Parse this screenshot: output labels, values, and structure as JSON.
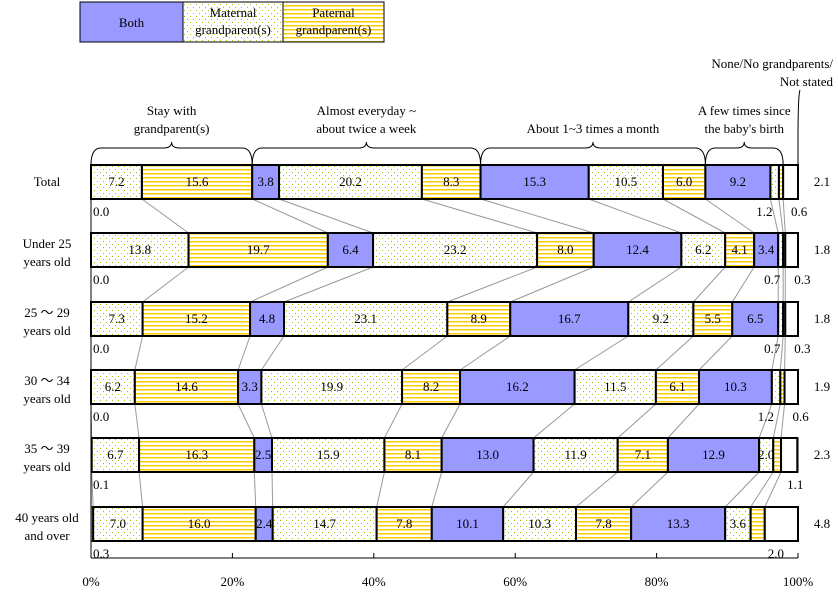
{
  "chart_data": {
    "type": "bar",
    "stacked": true,
    "orientation": "horizontal",
    "legend": [
      {
        "name": "Both",
        "color": "#9999ff",
        "pattern": "solid"
      },
      {
        "name": "Maternal grandparent(s)",
        "color": "#99cc00",
        "pattern": "dots"
      },
      {
        "name": "Paternal grandparent(s)",
        "color": "#ffcc00",
        "pattern": "stripes"
      }
    ],
    "legend_lines": [
      [
        "Both"
      ],
      [
        "Maternal",
        "grandparent(s)"
      ],
      [
        "Paternal",
        "grandparent(s)"
      ]
    ],
    "groups": [
      {
        "label": [
          "Stay with",
          "grandparent(s)"
        ]
      },
      {
        "label": [
          "Almost everyday ~",
          "about twice a week"
        ]
      },
      {
        "label": [
          "About 1~3 times a month"
        ]
      },
      {
        "label": [
          "A few times since",
          "the baby's birth"
        ]
      },
      {
        "label": [
          "None/No grandparents/",
          "Not stated"
        ]
      }
    ],
    "segment_types": [
      "both",
      "maternal",
      "paternal",
      "both",
      "maternal",
      "paternal",
      "both",
      "maternal",
      "paternal",
      "both",
      "maternal",
      "paternal",
      "none"
    ],
    "categories": [
      [
        "Total"
      ],
      [
        "Under 25",
        "years old"
      ],
      [
        "25 ～ 29",
        "years old"
      ],
      [
        "30 ～ 34",
        "years old"
      ],
      [
        "35 ～ 39",
        "years old"
      ],
      [
        "40 years old",
        "and over"
      ]
    ],
    "values": [
      [
        0.0,
        7.2,
        15.6,
        3.8,
        20.2,
        8.3,
        15.3,
        10.5,
        6.0,
        9.2,
        1.2,
        0.6,
        2.1
      ],
      [
        0.0,
        13.8,
        19.7,
        6.4,
        23.2,
        8.0,
        12.4,
        6.2,
        4.1,
        3.4,
        0.7,
        0.3,
        1.8
      ],
      [
        0.0,
        7.3,
        15.2,
        4.8,
        23.1,
        8.9,
        16.7,
        9.2,
        5.5,
        6.5,
        0.7,
        0.3,
        1.8
      ],
      [
        0.0,
        6.2,
        14.6,
        3.3,
        19.9,
        8.2,
        16.2,
        11.5,
        6.1,
        10.3,
        1.2,
        0.6,
        1.9
      ],
      [
        0.1,
        6.7,
        16.3,
        2.5,
        15.9,
        8.1,
        13.0,
        11.9,
        7.1,
        12.9,
        2.0,
        1.1,
        2.3
      ],
      [
        0.3,
        7.0,
        16.0,
        2.4,
        14.7,
        7.8,
        10.1,
        10.3,
        7.8,
        13.3,
        3.6,
        2.0,
        4.8
      ]
    ],
    "xlim": [
      0,
      100
    ],
    "xticks": [
      "0%",
      "20%",
      "40%",
      "60%",
      "80%",
      "100%"
    ],
    "grid": false
  }
}
